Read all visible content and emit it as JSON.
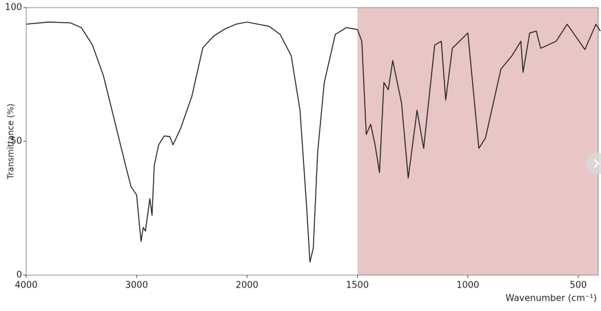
{
  "chart_data": {
    "type": "line",
    "y_label": "Transmittance (%)",
    "x_label": "Wavenumber (cm⁻¹)",
    "xlim": [
      4000,
      400
    ],
    "ylim": [
      0,
      100
    ],
    "xticks": [
      4000,
      3000,
      2000,
      1500,
      1000,
      500
    ],
    "yticks": [
      0,
      50,
      100
    ],
    "x_scale_break": 2000,
    "x_scale_expand": 2,
    "shaded_region": {
      "range": [
        1500,
        400
      ],
      "color": "#e9c6c6"
    },
    "series": [
      {
        "name": "spectrum",
        "color": "#222222",
        "x": [
          4000,
          3800,
          3600,
          3500,
          3400,
          3300,
          3200,
          3100,
          3050,
          3000,
          2960,
          2940,
          2920,
          2880,
          2860,
          2840,
          2800,
          2750,
          2700,
          2670,
          2600,
          2500,
          2400,
          2300,
          2200,
          2100,
          2000,
          1900,
          1850,
          1800,
          1760,
          1730,
          1715,
          1700,
          1680,
          1650,
          1600,
          1550,
          1500,
          1480,
          1460,
          1440,
          1420,
          1400,
          1380,
          1360,
          1340,
          1300,
          1270,
          1230,
          1200,
          1150,
          1120,
          1100,
          1070,
          1000,
          950,
          920,
          850,
          800,
          760,
          750,
          720,
          690,
          670,
          600,
          550,
          470,
          420,
          400
        ],
        "values": [
          93.8,
          94.6,
          94.3,
          92.5,
          86,
          74.5,
          57.7,
          41,
          33,
          30,
          12.6,
          17.8,
          16.5,
          28.6,
          22.4,
          41,
          48.7,
          52,
          51.8,
          48.7,
          55,
          66.8,
          85,
          89.4,
          92,
          93.8,
          94.6,
          93,
          90,
          82,
          61.6,
          25.5,
          4.9,
          10,
          46,
          72,
          90,
          92.5,
          91.8,
          87.4,
          52.6,
          56.4,
          48.7,
          38.4,
          72,
          69.3,
          80.2,
          64.2,
          36.3,
          61.6,
          47.4,
          86,
          87.4,
          65.5,
          84.8,
          90.5,
          47.4,
          51.3,
          77,
          82,
          87.4,
          75.8,
          90.5,
          91.2,
          84.8,
          87.4,
          93.8,
          84.3,
          93.8,
          91.2
        ]
      }
    ]
  }
}
